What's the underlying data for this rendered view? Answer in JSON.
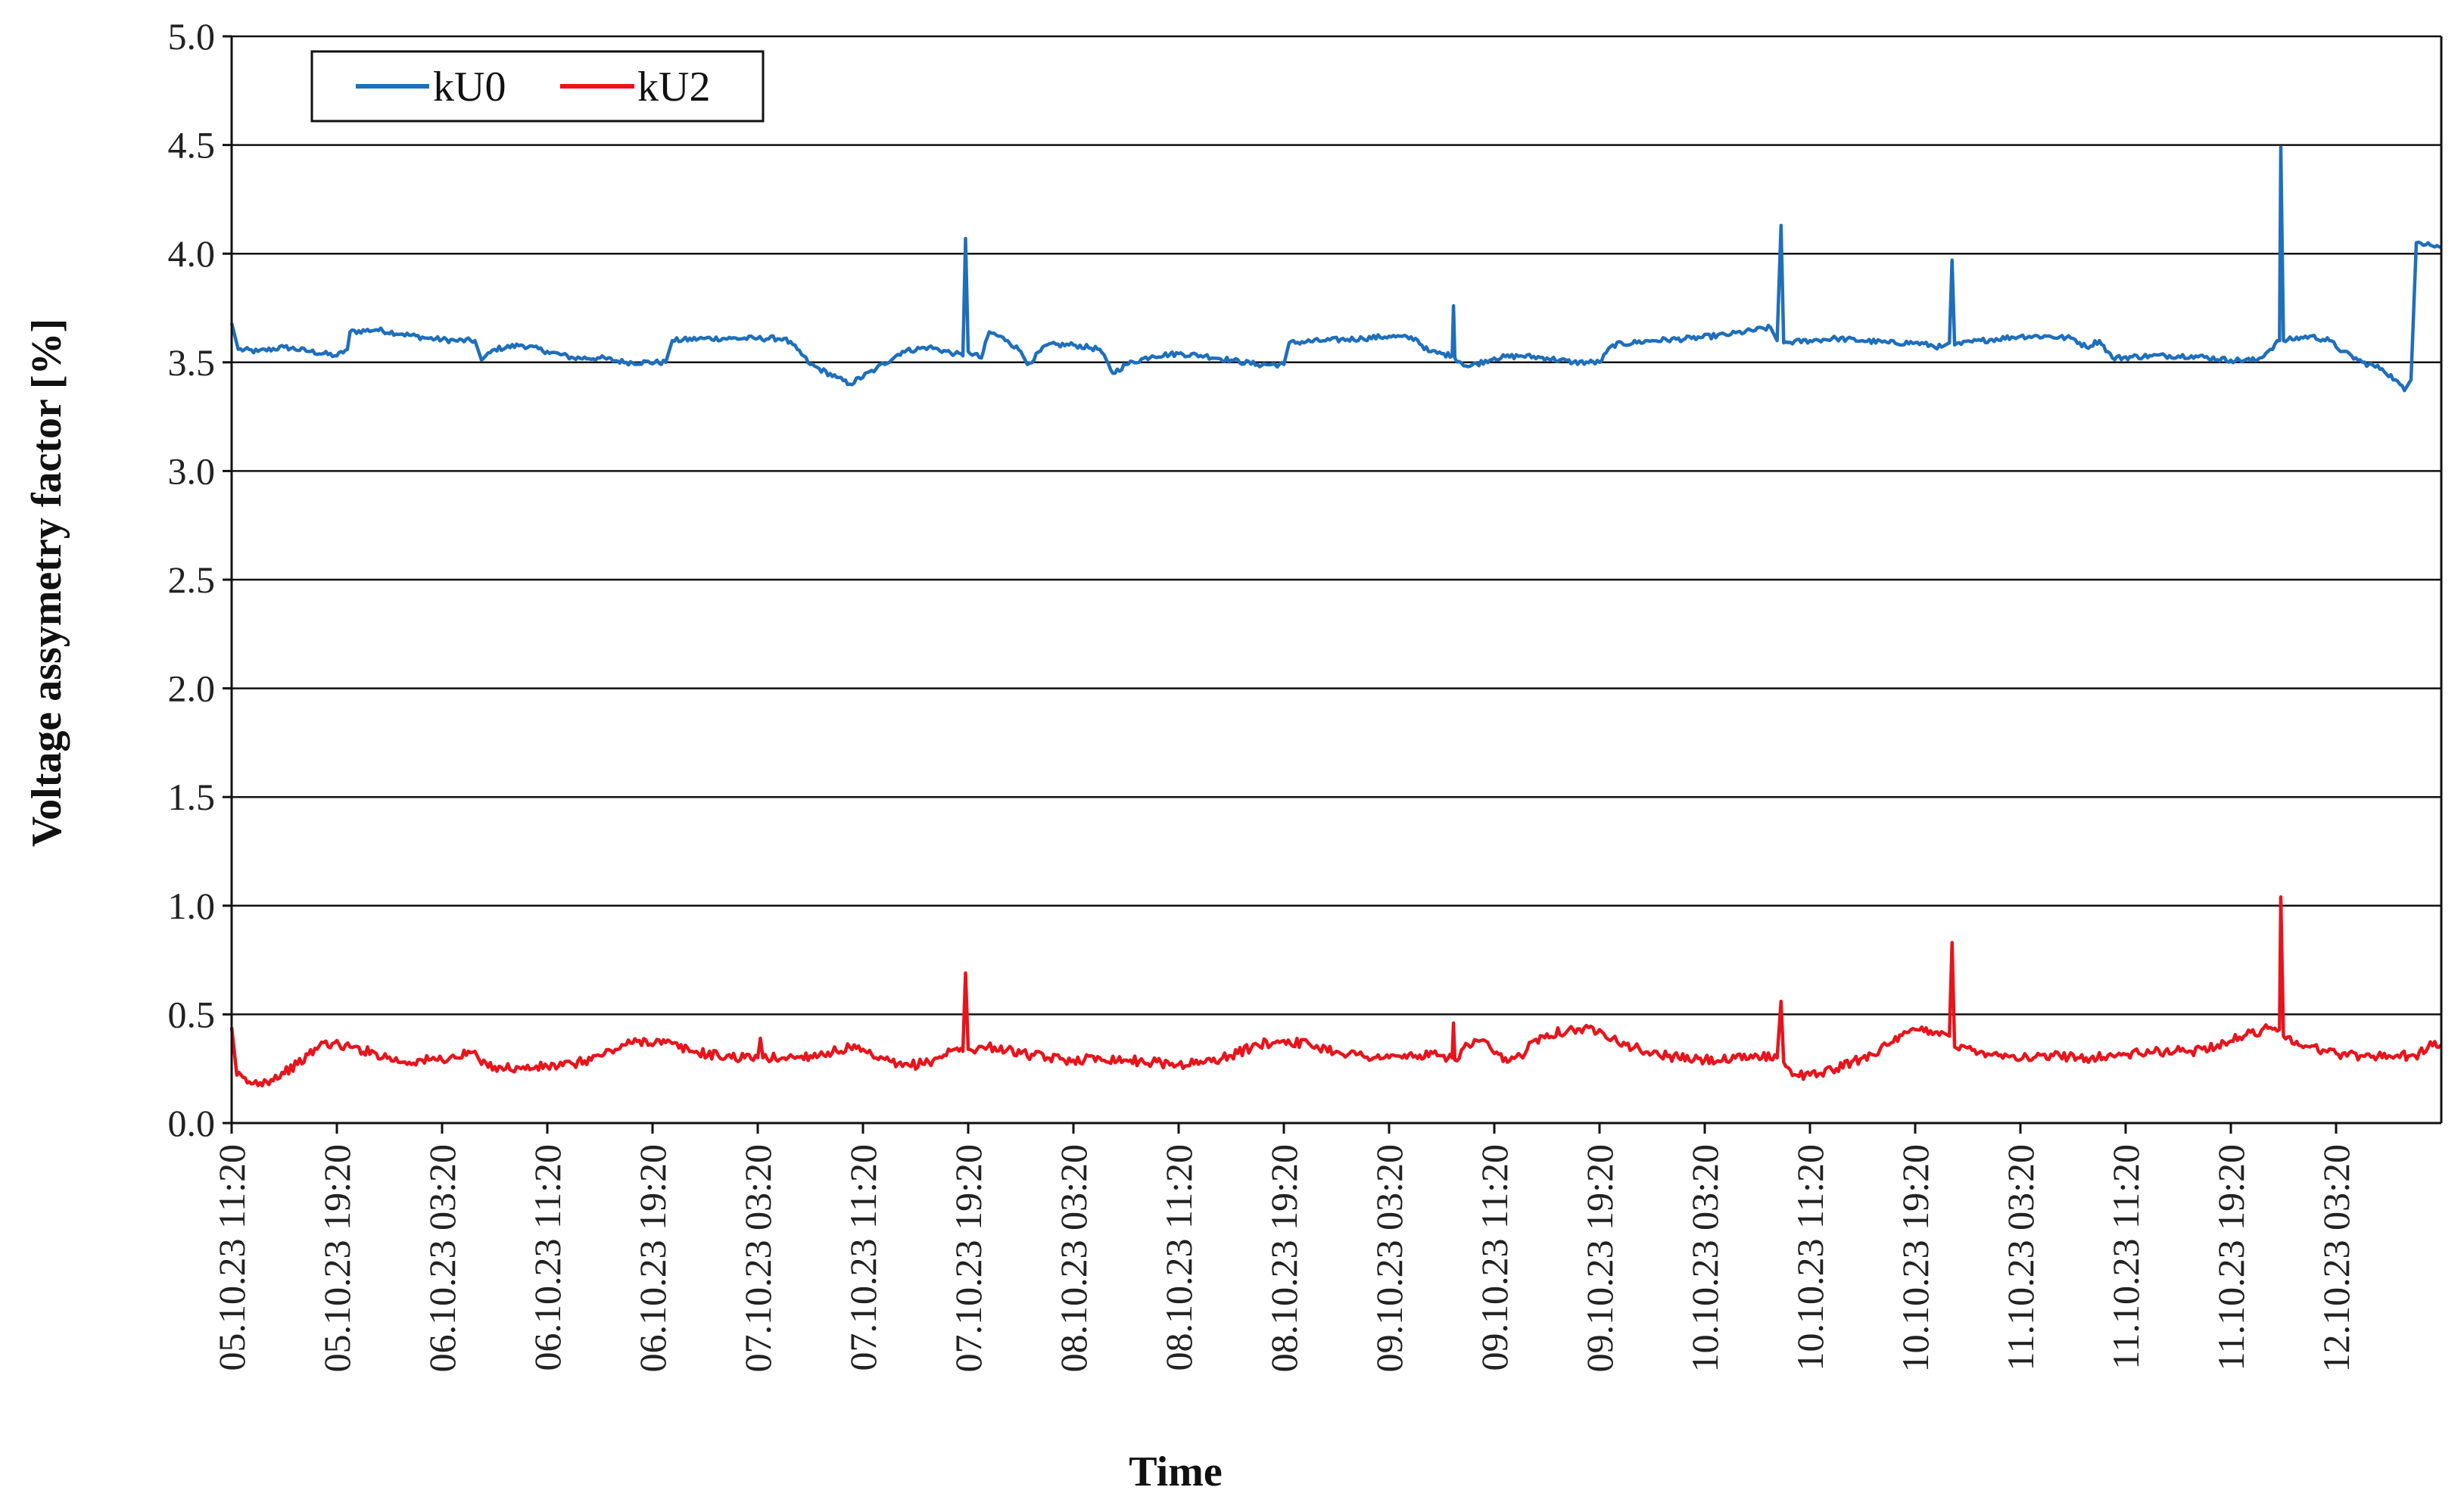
{
  "chart_data": {
    "type": "line",
    "title": "",
    "xlabel": "Time",
    "ylabel": "Voltage assymetry factor  [%]",
    "ylim": [
      0.0,
      5.0
    ],
    "yticks": [
      "0.0",
      "0.5",
      "1.0",
      "1.5",
      "2.0",
      "2.5",
      "3.0",
      "3.5",
      "4.0",
      "4.5",
      "5.0"
    ],
    "x_ticks": [
      "05.10.23 11:20",
      "05.10.23 19:20",
      "06.10.23 03:20",
      "06.10.23 11:20",
      "06.10.23 19:20",
      "07.10.23 03:20",
      "07.10.23 11:20",
      "07.10.23 19:20",
      "08.10.23 03:20",
      "08.10.23 11:20",
      "08.10.23 19:20",
      "09.10.23 03:20",
      "09.10.23 11:20",
      "09.10.23 19:20",
      "10.10.23 03:20",
      "10.10.23 11:20",
      "10.10.23 19:20",
      "11.10.23 03:20",
      "11.10.23 11:20",
      "11.10.23 19:20",
      "12.10.23 03:20"
    ],
    "x_range_hours": [
      0,
      168
    ],
    "grid": "horizontal",
    "legend_position": "top-left",
    "series": [
      {
        "name": "kU0",
        "color": "#1f6fba",
        "points": [
          [
            0,
            3.68
          ],
          [
            0.5,
            3.56
          ],
          [
            2,
            3.55
          ],
          [
            4,
            3.57
          ],
          [
            6,
            3.55
          ],
          [
            8,
            3.53
          ],
          [
            8.8,
            3.56
          ],
          [
            9,
            3.64
          ],
          [
            11,
            3.65
          ],
          [
            13,
            3.63
          ],
          [
            15,
            3.61
          ],
          [
            17,
            3.6
          ],
          [
            18.5,
            3.6
          ],
          [
            19,
            3.51
          ],
          [
            20,
            3.56
          ],
          [
            22,
            3.58
          ],
          [
            24,
            3.55
          ],
          [
            26,
            3.52
          ],
          [
            28,
            3.52
          ],
          [
            30,
            3.5
          ],
          [
            33,
            3.5
          ],
          [
            33.5,
            3.6
          ],
          [
            36,
            3.61
          ],
          [
            38,
            3.61
          ],
          [
            40,
            3.61
          ],
          [
            42,
            3.61
          ],
          [
            43,
            3.56
          ],
          [
            44,
            3.49
          ],
          [
            46,
            3.43
          ],
          [
            47,
            3.4
          ],
          [
            49,
            3.47
          ],
          [
            51,
            3.55
          ],
          [
            53,
            3.57
          ],
          [
            55,
            3.54
          ],
          [
            55.6,
            3.53
          ],
          [
            55.8,
            4.07
          ],
          [
            56,
            3.55
          ],
          [
            57,
            3.52
          ],
          [
            57.6,
            3.64
          ],
          [
            59,
            3.6
          ],
          [
            60,
            3.55
          ],
          [
            60.5,
            3.49
          ],
          [
            62,
            3.58
          ],
          [
            64,
            3.58
          ],
          [
            66,
            3.56
          ],
          [
            67,
            3.45
          ],
          [
            68,
            3.49
          ],
          [
            70,
            3.53
          ],
          [
            72,
            3.54
          ],
          [
            74,
            3.53
          ],
          [
            76,
            3.51
          ],
          [
            78,
            3.49
          ],
          [
            80,
            3.49
          ],
          [
            80.4,
            3.59
          ],
          [
            83,
            3.6
          ],
          [
            86,
            3.61
          ],
          [
            88,
            3.62
          ],
          [
            90,
            3.61
          ],
          [
            91,
            3.55
          ],
          [
            92,
            3.54
          ],
          [
            92.8,
            3.53
          ],
          [
            92.9,
            3.76
          ],
          [
            93,
            3.52
          ],
          [
            94,
            3.48
          ],
          [
            96,
            3.52
          ],
          [
            98,
            3.53
          ],
          [
            100,
            3.52
          ],
          [
            102,
            3.5
          ],
          [
            104,
            3.5
          ],
          [
            105,
            3.58
          ],
          [
            108,
            3.6
          ],
          [
            111,
            3.61
          ],
          [
            114,
            3.63
          ],
          [
            117,
            3.66
          ],
          [
            117.5,
            3.6
          ],
          [
            117.8,
            4.13
          ],
          [
            118,
            3.59
          ],
          [
            120,
            3.6
          ],
          [
            122,
            3.61
          ],
          [
            124,
            3.6
          ],
          [
            126,
            3.59
          ],
          [
            128,
            3.59
          ],
          [
            130,
            3.57
          ],
          [
            130.6,
            3.59
          ],
          [
            130.8,
            3.97
          ],
          [
            131,
            3.58
          ],
          [
            133,
            3.6
          ],
          [
            136,
            3.62
          ],
          [
            138,
            3.62
          ],
          [
            140,
            3.61
          ],
          [
            141,
            3.57
          ],
          [
            142,
            3.6
          ],
          [
            143,
            3.52
          ],
          [
            146,
            3.53
          ],
          [
            149,
            3.53
          ],
          [
            152,
            3.51
          ],
          [
            154,
            3.51
          ],
          [
            155,
            3.56
          ],
          [
            155.7,
            3.6
          ],
          [
            155.8,
            4.49
          ],
          [
            156,
            3.6
          ],
          [
            158,
            3.62
          ],
          [
            159.5,
            3.6
          ],
          [
            160.5,
            3.55
          ],
          [
            162,
            3.5
          ],
          [
            163.5,
            3.47
          ],
          [
            164.5,
            3.42
          ],
          [
            165.2,
            3.37
          ],
          [
            165.7,
            3.42
          ],
          [
            166.1,
            4.05
          ],
          [
            167,
            4.05
          ],
          [
            168,
            4.03
          ]
        ]
      },
      {
        "name": "kU2",
        "color": "#e8141c",
        "points": [
          [
            0,
            0.44
          ],
          [
            0.4,
            0.22
          ],
          [
            1.5,
            0.18
          ],
          [
            3,
            0.2
          ],
          [
            5,
            0.27
          ],
          [
            7,
            0.37
          ],
          [
            9,
            0.35
          ],
          [
            11,
            0.32
          ],
          [
            13,
            0.28
          ],
          [
            15,
            0.29
          ],
          [
            17,
            0.3
          ],
          [
            18.5,
            0.33
          ],
          [
            19,
            0.27
          ],
          [
            20,
            0.26
          ],
          [
            22,
            0.25
          ],
          [
            24,
            0.26
          ],
          [
            26,
            0.27
          ],
          [
            28,
            0.31
          ],
          [
            30,
            0.36
          ],
          [
            31,
            0.38
          ],
          [
            33,
            0.37
          ],
          [
            35,
            0.33
          ],
          [
            37,
            0.31
          ],
          [
            39,
            0.3
          ],
          [
            40,
            0.3
          ],
          [
            40.2,
            0.39
          ],
          [
            40.4,
            0.3
          ],
          [
            42,
            0.3
          ],
          [
            44,
            0.31
          ],
          [
            46,
            0.33
          ],
          [
            47,
            0.35
          ],
          [
            49,
            0.3
          ],
          [
            51,
            0.26
          ],
          [
            53,
            0.28
          ],
          [
            55,
            0.34
          ],
          [
            55.6,
            0.33
          ],
          [
            55.8,
            0.69
          ],
          [
            56,
            0.34
          ],
          [
            58,
            0.35
          ],
          [
            60,
            0.32
          ],
          [
            62,
            0.3
          ],
          [
            64,
            0.29
          ],
          [
            66,
            0.3
          ],
          [
            68,
            0.29
          ],
          [
            70,
            0.28
          ],
          [
            72,
            0.27
          ],
          [
            74,
            0.28
          ],
          [
            76,
            0.31
          ],
          [
            78,
            0.36
          ],
          [
            80,
            0.38
          ],
          [
            82,
            0.36
          ],
          [
            84,
            0.33
          ],
          [
            86,
            0.31
          ],
          [
            88,
            0.3
          ],
          [
            90,
            0.31
          ],
          [
            92,
            0.31
          ],
          [
            92.8,
            0.3
          ],
          [
            92.9,
            0.46
          ],
          [
            93,
            0.29
          ],
          [
            94,
            0.36
          ],
          [
            95,
            0.38
          ],
          [
            96,
            0.32
          ],
          [
            97,
            0.28
          ],
          [
            98,
            0.31
          ],
          [
            99,
            0.38
          ],
          [
            100,
            0.41
          ],
          [
            102,
            0.43
          ],
          [
            104,
            0.43
          ],
          [
            106,
            0.36
          ],
          [
            108,
            0.32
          ],
          [
            110,
            0.3
          ],
          [
            112,
            0.29
          ],
          [
            114,
            0.29
          ],
          [
            116,
            0.31
          ],
          [
            117.5,
            0.3
          ],
          [
            117.8,
            0.56
          ],
          [
            118,
            0.28
          ],
          [
            119,
            0.22
          ],
          [
            120,
            0.22
          ],
          [
            122,
            0.25
          ],
          [
            124,
            0.3
          ],
          [
            126,
            0.36
          ],
          [
            128,
            0.43
          ],
          [
            130,
            0.42
          ],
          [
            130.6,
            0.4
          ],
          [
            130.8,
            0.83
          ],
          [
            131,
            0.35
          ],
          [
            133,
            0.33
          ],
          [
            135,
            0.31
          ],
          [
            137,
            0.3
          ],
          [
            139,
            0.31
          ],
          [
            141,
            0.3
          ],
          [
            143,
            0.31
          ],
          [
            145,
            0.32
          ],
          [
            147,
            0.33
          ],
          [
            149,
            0.33
          ],
          [
            151,
            0.36
          ],
          [
            153,
            0.4
          ],
          [
            155,
            0.44
          ],
          [
            155.7,
            0.43
          ],
          [
            155.8,
            1.04
          ],
          [
            156,
            0.4
          ],
          [
            158,
            0.35
          ],
          [
            160,
            0.32
          ],
          [
            162,
            0.31
          ],
          [
            164,
            0.31
          ],
          [
            166,
            0.31
          ],
          [
            167,
            0.35
          ],
          [
            168,
            0.36
          ]
        ]
      }
    ]
  }
}
